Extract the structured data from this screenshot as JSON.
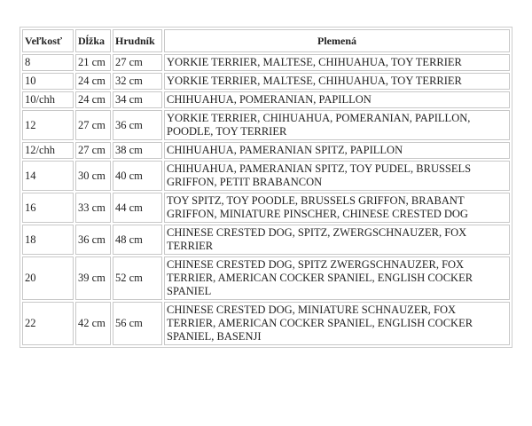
{
  "headers": [
    "Veľkosť",
    "Dĺžka",
    "Hrudník",
    "Plemená"
  ],
  "rows": [
    {
      "size": "8",
      "length": "21 cm",
      "chest": "27 cm",
      "breeds": "YORKIE TERRIER, MALTESE, CHIHUAHUA, TOY TERRIER"
    },
    {
      "size": "10",
      "length": "24 cm",
      "chest": "32 cm",
      "breeds": "YORKIE TERRIER, MALTESE, CHIHUAHUA, TOY TERRIER"
    },
    {
      "size": "10/chh",
      "length": "24 cm",
      "chest": "34 cm",
      "breeds": "CHIHUAHUA, POMERANIAN, PAPILLON"
    },
    {
      "size": "12",
      "length": "27 cm",
      "chest": "36 cm",
      "breeds": "YORKIE TERRIER, CHIHUAHUA, POMERANIAN, PAPILLON, POODLE, TOY TERRIER"
    },
    {
      "size": "12/chh",
      "length": "27 cm",
      "chest": "38 cm",
      "breeds": "CHIHUAHUA, PAMERANIAN SPITZ, PAPILLON"
    },
    {
      "size": "14",
      "length": "30 cm",
      "chest": "40 cm",
      "breeds": "CHIHUAHUA, PAMERANIAN SPITZ, TOY PUDEL, BRUSSELS GRIFFON, PETIT BRABANCON"
    },
    {
      "size": "16",
      "length": "33 cm",
      "chest": "44 cm",
      "breeds": "TOY SPITZ, TOY POODLE, BRUSSELS GRIFFON, BRABANT GRIFFON, MINIATURE PINSCHER, CHINESE CRESTED DOG"
    },
    {
      "size": "18",
      "length": "36 cm",
      "chest": "48 cm",
      "breeds": "CHINESE CRESTED DOG, SPITZ, ZWERGSCHNAUZER, FOX TERRIER"
    },
    {
      "size": "20",
      "length": "39 cm",
      "chest": "52 cm",
      "breeds": "CHINESE CRESTED DOG, SPITZ ZWERGSCHNAUZER, FOX TERRIER, AMERICAN COCKER SPANIEL, ENGLISH COCKER SPANIEL"
    },
    {
      "size": "22",
      "length": "42 cm",
      "chest": "56 cm",
      "breeds": "CHINESE CRESTED DOG, MINIATURE SCHNAUZER, FOX TERRIER, AMERICAN COCKER SPANIEL, ENGLISH COCKER SPANIEL, BASENJI"
    }
  ]
}
